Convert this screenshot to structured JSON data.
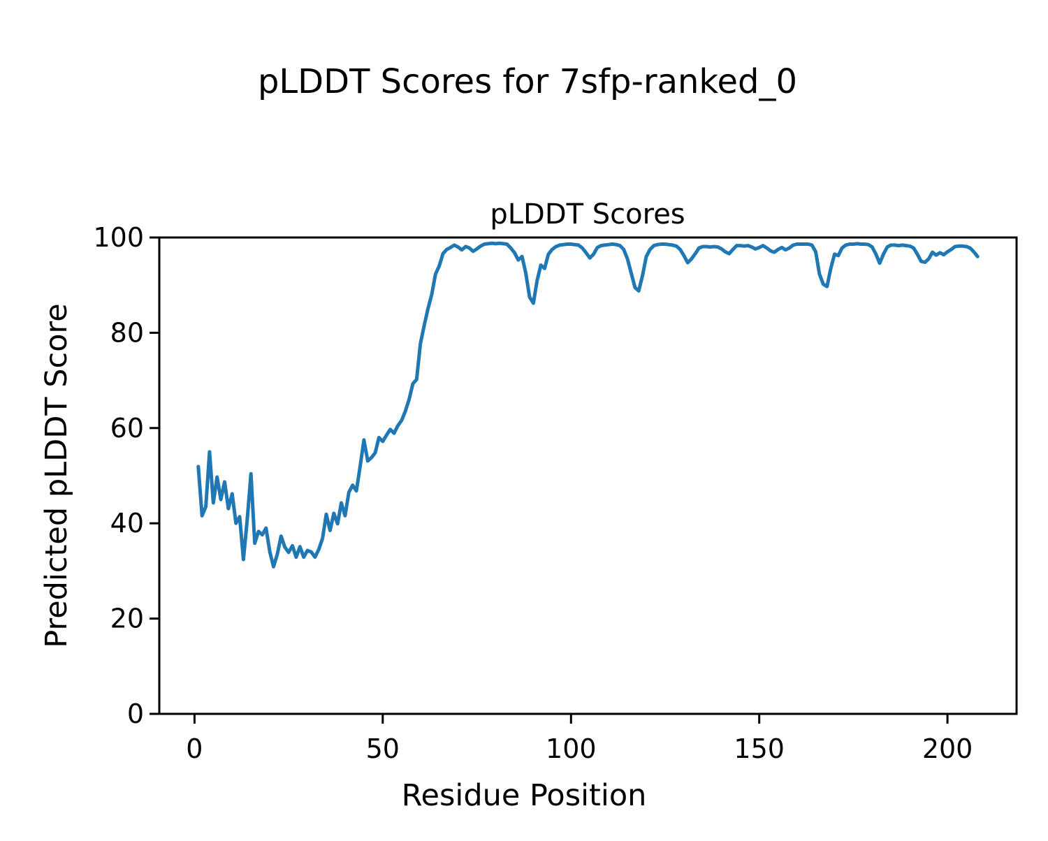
{
  "figure": {
    "suptitle": "pLDDT Scores for 7sfp-ranked_0"
  },
  "chart_data": {
    "type": "line",
    "title": "pLDDT Scores",
    "xlabel": "Residue Position",
    "ylabel": "Predicted pLDDT Score",
    "x_ticks": [
      0,
      50,
      100,
      150,
      200
    ],
    "y_ticks": [
      0,
      20,
      40,
      60,
      80,
      100
    ],
    "xlim": [
      -9.35,
      218.35
    ],
    "ylim": [
      0,
      100
    ],
    "grid": false,
    "legend_position": "none",
    "line_color": "#1f77b4",
    "series": [
      {
        "name": "pLDDT",
        "x_start": 1,
        "values": [
          51.9,
          41.6,
          43.5,
          55.0,
          44.3,
          49.7,
          45.0,
          48.7,
          43.1,
          46.2,
          40.0,
          41.4,
          32.4,
          40.7,
          50.4,
          35.8,
          38.3,
          37.6,
          39.0,
          34.0,
          30.9,
          33.5,
          37.3,
          35.0,
          33.9,
          35.3,
          32.9,
          35.1,
          32.9,
          34.3,
          34.0,
          32.9,
          34.5,
          36.8,
          41.9,
          38.5,
          42.1,
          39.9,
          44.3,
          41.6,
          46.5,
          48.0,
          46.8,
          52.0,
          57.5,
          53.1,
          53.8,
          54.8,
          58.0,
          57.2,
          58.5,
          59.7,
          58.9,
          60.5,
          61.6,
          63.5,
          66.0,
          69.3,
          70.2,
          77.7,
          81.5,
          85.0,
          88.0,
          92.3,
          94.0,
          96.6,
          97.5,
          97.9,
          98.4,
          98.0,
          97.4,
          98.1,
          97.8,
          97.1,
          97.6,
          98.2,
          98.6,
          98.7,
          98.8,
          98.7,
          98.8,
          98.7,
          98.6,
          97.8,
          96.8,
          95.3,
          96.0,
          92.5,
          87.5,
          86.2,
          91.0,
          94.2,
          93.5,
          96.5,
          97.5,
          98.1,
          98.4,
          98.5,
          98.6,
          98.6,
          98.5,
          98.4,
          97.8,
          96.8,
          95.7,
          96.5,
          97.9,
          98.3,
          98.4,
          98.5,
          98.6,
          98.5,
          98.3,
          97.5,
          95.5,
          92.5,
          89.5,
          88.8,
          92.0,
          96.0,
          97.5,
          98.3,
          98.5,
          98.6,
          98.6,
          98.5,
          98.4,
          98.2,
          97.5,
          96.2,
          94.7,
          95.5,
          96.6,
          97.8,
          98.1,
          98.1,
          98.0,
          98.1,
          98.0,
          97.6,
          97.0,
          96.6,
          97.5,
          98.3,
          98.3,
          98.2,
          98.3,
          98.0,
          97.6,
          97.9,
          98.3,
          97.8,
          97.2,
          96.9,
          97.5,
          97.9,
          97.4,
          97.8,
          98.4,
          98.6,
          98.6,
          98.6,
          98.6,
          98.4,
          97.0,
          92.3,
          90.2,
          89.7,
          93.5,
          96.5,
          96.2,
          97.8,
          98.4,
          98.6,
          98.6,
          98.7,
          98.6,
          98.6,
          98.5,
          98.0,
          96.5,
          94.6,
          96.5,
          98.0,
          98.4,
          98.4,
          98.3,
          98.4,
          98.3,
          98.2,
          97.8,
          96.5,
          95.0,
          94.8,
          95.5,
          96.9,
          96.3,
          96.8,
          96.4,
          97.0,
          97.5,
          98.1,
          98.2,
          98.2,
          98.1,
          97.8,
          97.0,
          96.0
        ]
      }
    ]
  }
}
